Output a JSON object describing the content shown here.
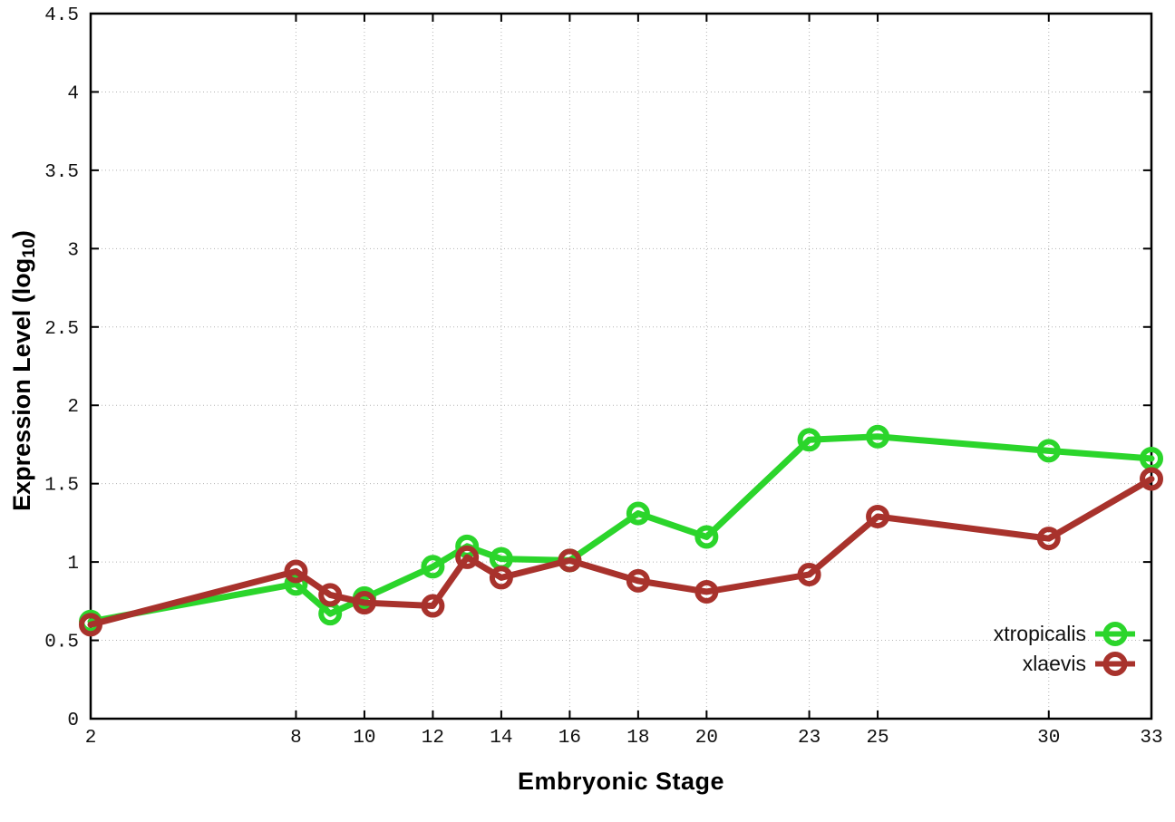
{
  "figure": {
    "xlabel": "Embryonic Stage",
    "ylabel_main": "Expression Level (log",
    "ylabel_sub": "10",
    "ylabel_close": ")"
  },
  "chart_data": {
    "type": "line",
    "title": "",
    "xlabel": "Embryonic Stage",
    "ylabel": "Expression Level (log10)",
    "x": [
      2,
      8,
      9,
      10,
      12,
      13,
      14,
      16,
      18,
      20,
      23,
      25,
      30,
      33
    ],
    "series": [
      {
        "name": "xtropicalis",
        "color": "#2bd52b",
        "values": [
          0.62,
          0.86,
          0.67,
          0.77,
          0.97,
          1.1,
          1.02,
          1.01,
          1.31,
          1.16,
          1.78,
          1.8,
          1.71,
          1.66
        ]
      },
      {
        "name": "xlaevis",
        "color": "#a8322c",
        "values": [
          0.6,
          0.94,
          0.79,
          0.74,
          0.72,
          1.03,
          0.9,
          1.01,
          0.88,
          0.81,
          0.92,
          1.29,
          1.15,
          1.53
        ]
      }
    ],
    "xlim": [
      2,
      33
    ],
    "ylim": [
      0,
      4.5
    ],
    "x_ticks": [
      2,
      8,
      10,
      12,
      14,
      16,
      18,
      20,
      23,
      25,
      30,
      33
    ],
    "y_ticks": [
      0,
      0.5,
      1,
      1.5,
      2,
      2.5,
      3,
      3.5,
      4,
      4.5
    ],
    "grid": true,
    "grid_color": "#b4b4b4",
    "marker": "open-circle",
    "legend_position": "bottom-right"
  },
  "legend": {
    "entries": [
      {
        "label": "xtropicalis",
        "color": "#2bd52b"
      },
      {
        "label": "xlaevis",
        "color": "#a8322c"
      }
    ]
  }
}
